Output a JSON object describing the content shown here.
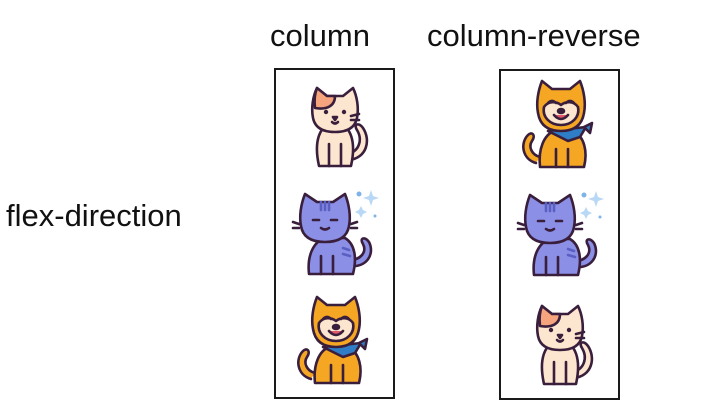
{
  "row_label": "flex-direction",
  "columns": [
    {
      "title": "column",
      "items": [
        "peach-cat",
        "purple-cat",
        "orange-dog"
      ]
    },
    {
      "title": "column-reverse",
      "items": [
        "peach-cat",
        "purple-cat",
        "orange-dog"
      ]
    }
  ],
  "colors": {
    "outline": "#3a1f3d",
    "peach_cat_body": "#fde6cf",
    "peach_cat_patch": "#f6a47e",
    "purple_cat_body": "#8b8fe6",
    "purple_cat_stripes": "#5a5fc2",
    "orange_dog_body": "#f5a623",
    "orange_dog_face": "#fde6cf",
    "bandana": "#2f7dc7",
    "sparkle": "#7fb3e8"
  }
}
